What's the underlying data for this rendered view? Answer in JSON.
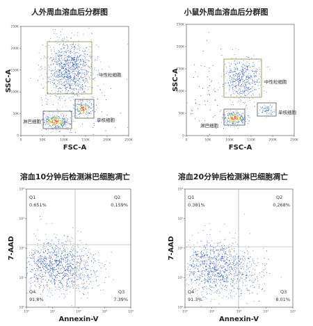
{
  "panels": [
    {
      "title": "人外周血溶血后分群图",
      "x_label": "FSC-A",
      "y_label": "SSC-A",
      "x_ticks": [
        "0",
        "50K",
        "100K",
        "150K",
        "200K",
        "250K"
      ],
      "y_ticks": [
        "0",
        "50K",
        "100K",
        "150K",
        "200K",
        "250K"
      ],
      "gates": [
        {
          "label": "中性粒细胞"
        },
        {
          "label": "淋巴细胞"
        },
        {
          "label": "单核细胞"
        }
      ]
    },
    {
      "title": "小鼠外周血溶血后分群图",
      "x_label": "FSC-A",
      "y_label": "SSC-A",
      "x_ticks": [
        "0",
        "50K",
        "100K",
        "150K",
        "200K",
        "250K"
      ],
      "y_ticks": [
        "0",
        "50K",
        "100K",
        "150K",
        "200K",
        "250K"
      ],
      "gates": [
        {
          "label": "中性粒细胞"
        },
        {
          "label": "淋巴细胞"
        },
        {
          "label": "单核细胞"
        }
      ]
    },
    {
      "title": "溶血10分钟后检测淋巴细胞凋亡",
      "x_label": "Annexin-V",
      "y_label": "7-AAD",
      "x_ticks": [
        "10⁰",
        "10¹",
        "10²",
        "10³",
        "10⁴"
      ],
      "y_ticks": [
        "10⁰",
        "10¹",
        "10²",
        "10³",
        "10⁴"
      ],
      "quadrants": [
        {
          "name": "Q1",
          "percent": "0.651%"
        },
        {
          "name": "Q2",
          "percent": "0.159%"
        },
        {
          "name": "Q3",
          "percent": "7.39%"
        },
        {
          "name": "Q4",
          "percent": "91.8%"
        }
      ]
    },
    {
      "title": "溶血20分钟后检测淋巴细胞凋亡",
      "x_label": "Annexin-V",
      "y_label": "7-AAD",
      "x_ticks": [
        "10⁰",
        "10¹",
        "10²",
        "10³",
        "10⁴"
      ],
      "y_ticks": [
        "10⁰",
        "10¹",
        "10²",
        "10³",
        "10⁴"
      ],
      "quadrants": [
        {
          "name": "Q1",
          "percent": "0.381%"
        },
        {
          "name": "Q2",
          "percent": "0.268%"
        },
        {
          "name": "Q3",
          "percent": "8.01%"
        },
        {
          "name": "Q4",
          "percent": "91.3%"
        }
      ]
    }
  ]
}
